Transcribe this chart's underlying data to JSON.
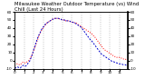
{
  "title": "Milwaukee Weather Outdoor Temperature (vs) Wind Chill (Last 24 Hours)",
  "background_color": "#ffffff",
  "plot_bg_color": "#ffffff",
  "grid_color": "#888888",
  "temp_color": "#ff0000",
  "windchill_color": "#0000cc",
  "ylim": [
    -10,
    60
  ],
  "yticks": [
    -10,
    0,
    10,
    20,
    30,
    40,
    50,
    60
  ],
  "num_points": 96,
  "temp_values": [
    -5,
    -5,
    -4,
    -4,
    -5,
    -5,
    -3,
    -2,
    -2,
    -3,
    -2,
    -1,
    0,
    2,
    5,
    8,
    12,
    16,
    20,
    24,
    28,
    32,
    35,
    38,
    40,
    42,
    44,
    46,
    47,
    48,
    49,
    50,
    51,
    51,
    52,
    52,
    52,
    52,
    51,
    51,
    50,
    50,
    50,
    49,
    49,
    49,
    49,
    48,
    48,
    47,
    47,
    46,
    46,
    45,
    44,
    43,
    42,
    41,
    40,
    39,
    38,
    37,
    36,
    35,
    34,
    33,
    31,
    30,
    28,
    26,
    24,
    22,
    20,
    18,
    16,
    14,
    13,
    12,
    11,
    10,
    9,
    8,
    7,
    6,
    5,
    5,
    4,
    4,
    4,
    3,
    3,
    2,
    2,
    2,
    1,
    1
  ],
  "wc_values": [
    -9,
    -9,
    -8,
    -8,
    -9,
    -9,
    -7,
    -6,
    -6,
    -7,
    -6,
    -4,
    -2,
    0,
    4,
    8,
    13,
    17,
    22,
    26,
    30,
    33,
    36,
    39,
    41,
    43,
    45,
    46,
    47,
    48,
    49,
    50,
    51,
    51,
    52,
    52,
    52,
    52,
    51,
    51,
    50,
    50,
    50,
    49,
    49,
    49,
    49,
    48,
    48,
    47,
    47,
    46,
    45,
    44,
    43,
    42,
    41,
    39,
    37,
    35,
    33,
    31,
    29,
    27,
    25,
    24,
    22,
    20,
    18,
    16,
    14,
    12,
    10,
    8,
    7,
    6,
    5,
    4,
    3,
    2,
    1,
    0,
    -1,
    -1,
    -2,
    -2,
    -3,
    -3,
    -4,
    -4,
    -4,
    -5,
    -5,
    -5,
    -6,
    -6
  ],
  "xtick_interval": 8,
  "vgrid_interval": 8,
  "title_fontsize": 3.8,
  "tick_fontsize": 3.0
}
